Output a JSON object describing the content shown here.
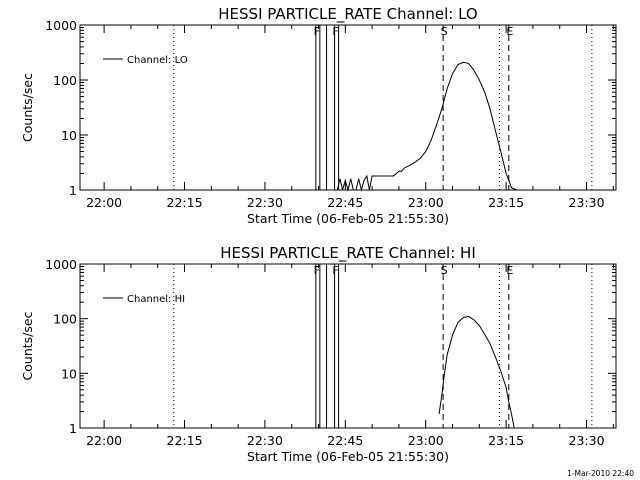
{
  "chart_data": [
    {
      "type": "line",
      "title": "HESSI PARTICLE_RATE Channel: LO",
      "xlabel": "Start Time (06-Feb-05 21:55:30)",
      "ylabel": "Counts/sec",
      "y_scale": "log",
      "ylim": [
        1,
        1000
      ],
      "xlim": [
        "21:55:30",
        "23:35:30"
      ],
      "x_tick_labels": [
        "22:00",
        "22:15",
        "22:30",
        "22:45",
        "23:00",
        "23:15",
        "23:30"
      ],
      "y_tick_labels": [
        "1",
        "10",
        "100",
        "1000"
      ],
      "legend": {
        "entries": [
          "Channel: LO"
        ],
        "position": "top-left"
      },
      "series": [
        {
          "name": "Channel: LO",
          "x": [
            "22:42:30",
            "22:43:00",
            "22:43:30",
            "22:44:00",
            "22:44:30",
            "22:45:00",
            "22:45:30",
            "22:46:00",
            "22:46:30",
            "22:47:00",
            "22:47:30",
            "22:48:00",
            "22:48:30",
            "22:49:00",
            "22:49:30",
            "22:50:00",
            "22:51:00",
            "22:52:00",
            "22:53:00",
            "22:54:00",
            "22:55:00",
            "22:55:30",
            "22:56:00",
            "22:57:00",
            "22:58:00",
            "22:59:00",
            "23:00:00",
            "23:01:00",
            "23:02:00",
            "23:03:00",
            "23:04:00",
            "23:05:00",
            "23:06:00",
            "23:07:00",
            "23:08:00",
            "23:09:00",
            "23:10:00",
            "23:11:00",
            "23:12:00",
            "23:13:00",
            "23:14:00",
            "23:15:00",
            "23:16:00",
            "23:17:00"
          ],
          "y": [
            1,
            1,
            1,
            1.6,
            1,
            1.5,
            1,
            1.6,
            1,
            1,
            1.6,
            1,
            1.5,
            1.8,
            1,
            1.8,
            1.8,
            1.8,
            1.8,
            1.8,
            2.2,
            2.2,
            2.5,
            2.8,
            3.2,
            3.8,
            5,
            8,
            15,
            30,
            70,
            130,
            190,
            210,
            200,
            150,
            100,
            60,
            30,
            12,
            5,
            2,
            1.1,
            1
          ]
        }
      ],
      "vertical_markers": [
        {
          "label": "",
          "time": "22:13:00",
          "style": "dotted"
        },
        {
          "label": "F",
          "time": "22:39:30",
          "style": "solid"
        },
        {
          "label": "",
          "time": "22:40:15",
          "style": "solid"
        },
        {
          "label": "",
          "time": "22:41:30",
          "style": "solid"
        },
        {
          "label": "F",
          "time": "22:43:00",
          "style": "solid"
        },
        {
          "label": "",
          "time": "22:43:45",
          "style": "solid"
        },
        {
          "label": "S",
          "time": "23:03:15",
          "style": "dashed"
        },
        {
          "label": "",
          "time": "23:13:45",
          "style": "dotted"
        },
        {
          "label": "E",
          "time": "23:15:30",
          "style": "dashed"
        },
        {
          "label": "",
          "time": "23:31:00",
          "style": "dotted"
        }
      ]
    },
    {
      "type": "line",
      "title": "HESSI PARTICLE_RATE Channel: HI",
      "xlabel": "Start Time (06-Feb-05 21:55:30)",
      "ylabel": "Counts/sec",
      "y_scale": "log",
      "ylim": [
        1,
        1000
      ],
      "xlim": [
        "21:55:30",
        "23:35:30"
      ],
      "x_tick_labels": [
        "22:00",
        "22:15",
        "22:30",
        "22:45",
        "23:00",
        "23:15",
        "23:30"
      ],
      "y_tick_labels": [
        "1",
        "10",
        "100",
        "1000"
      ],
      "legend": {
        "entries": [
          "Channel: HI"
        ],
        "position": "top-left"
      },
      "series": [
        {
          "name": "Channel: HI",
          "x": [
            "23:02:30",
            "23:03:00",
            "23:03:30",
            "23:04:00",
            "23:05:00",
            "23:06:00",
            "23:07:00",
            "23:08:00",
            "23:09:00",
            "23:10:00",
            "23:11:00",
            "23:12:00",
            "23:13:00",
            "23:14:00",
            "23:15:00",
            "23:15:30",
            "23:16:00",
            "23:16:30"
          ],
          "y": [
            1.8,
            4,
            10,
            22,
            50,
            85,
            105,
            110,
            95,
            75,
            52,
            35,
            20,
            11,
            5.5,
            3,
            1.8,
            1
          ]
        }
      ],
      "vertical_markers": [
        {
          "label": "",
          "time": "22:13:00",
          "style": "dotted"
        },
        {
          "label": "F",
          "time": "22:39:30",
          "style": "solid"
        },
        {
          "label": "",
          "time": "22:40:15",
          "style": "solid"
        },
        {
          "label": "",
          "time": "22:41:30",
          "style": "solid"
        },
        {
          "label": "F",
          "time": "22:43:00",
          "style": "solid"
        },
        {
          "label": "",
          "time": "22:43:45",
          "style": "solid"
        },
        {
          "label": "S",
          "time": "23:03:15",
          "style": "dashed"
        },
        {
          "label": "",
          "time": "23:13:45",
          "style": "dotted"
        },
        {
          "label": "E",
          "time": "23:15:30",
          "style": "dashed"
        },
        {
          "label": "",
          "time": "23:31:00",
          "style": "dotted"
        }
      ]
    }
  ],
  "timestamp": "1-Mar-2010 22:40"
}
